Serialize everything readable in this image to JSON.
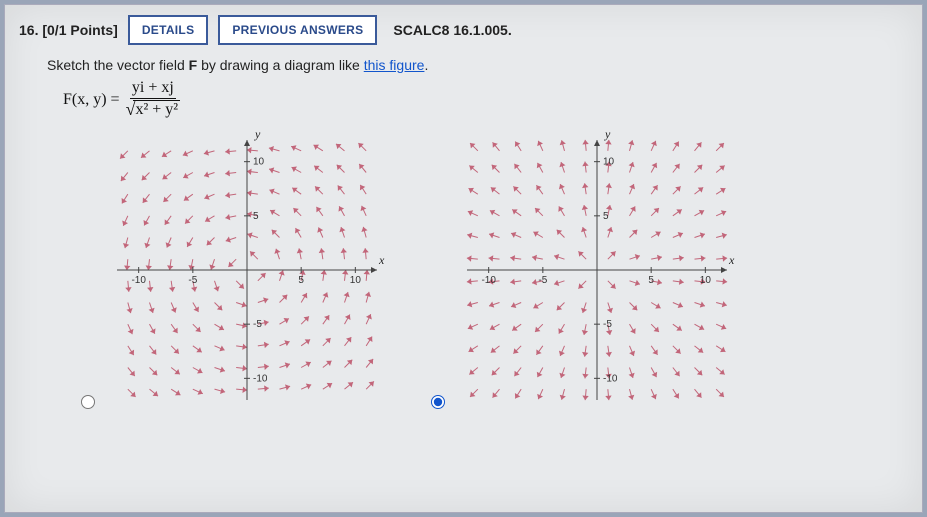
{
  "header": {
    "question_number": "16.",
    "points": "[0/1 Points]",
    "details_btn": "DETAILS",
    "prev_btn": "PREVIOUS ANSWERS",
    "ref": "SCALC8 16.1.005."
  },
  "prompt": {
    "pre": "Sketch the vector field ",
    "bold": "F",
    "mid": " by drawing a diagram like ",
    "link": "this figure",
    "post": "."
  },
  "formula": {
    "lhs": "F(x, y) = ",
    "num": "yi + xj",
    "radicand": "x² + y²"
  },
  "chart": {
    "size": 280,
    "half": 130,
    "padding": 10,
    "domain": [
      -12,
      12
    ],
    "ticks": [
      -10,
      -5,
      5,
      10
    ],
    "xlabel": "x",
    "ylabel": "y",
    "arrow_len": 11,
    "head_w": 3.2,
    "head_l": 4.4,
    "color": "#c2667a",
    "axis_color": "#444444",
    "background": "#e8eaec",
    "grid_step": 2,
    "fields": {
      "rotational": "dx=-y, dy=x (normalized)",
      "outward": "dx=x,  dy=y (normalized)"
    }
  },
  "options": {
    "left_selected": false,
    "right_selected": true
  }
}
